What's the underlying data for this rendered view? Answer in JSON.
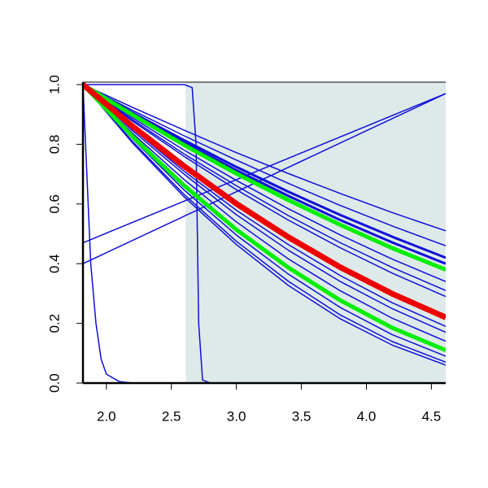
{
  "chart_data": {
    "type": "line",
    "xlim": [
      1.82,
      4.61
    ],
    "ylim": [
      0,
      1
    ],
    "xticks": [
      {
        "value": 2,
        "label": "2.0"
      },
      2.5,
      {
        "value": 3,
        "label": "3.0"
      },
      3.5,
      {
        "value": 4,
        "label": "4.0"
      },
      4.5
    ],
    "yticks": [
      {
        "value": 0,
        "label": "0.0"
      },
      0.2,
      0.4,
      0.6,
      0.8,
      {
        "value": 1,
        "label": "1.0"
      }
    ],
    "highlight": {
      "from": 2.61,
      "color": "#deeaea"
    },
    "x": [
      1.82,
      2.2,
      2.6,
      3.0,
      3.4,
      3.8,
      4.2,
      4.61
    ],
    "series": [
      {
        "color": "#1010d8",
        "linewidth": 1.5,
        "values": [
          1,
          0.924,
          0.847,
          0.772,
          0.702,
          0.635,
          0.571,
          0.51
        ]
      },
      {
        "color": "#1010d8",
        "linewidth": 1.5,
        "values": [
          1,
          0.914,
          0.828,
          0.747,
          0.669,
          0.595,
          0.526,
          0.46
        ]
      },
      {
        "color": "#1010d8",
        "linewidth": 3,
        "values": [
          1,
          0.906,
          0.813,
          0.724,
          0.641,
          0.563,
          0.49,
          0.42
        ]
      },
      {
        "color": "#1010d8",
        "linewidth": 3,
        "values": [
          1,
          0.902,
          0.805,
          0.713,
          0.627,
          0.546,
          0.471,
          0.4
        ]
      },
      {
        "color": "#1010d8",
        "linewidth": 1.5,
        "values": [
          1,
          0.889,
          0.78,
          0.679,
          0.584,
          0.496,
          0.415,
          0.34
        ]
      },
      {
        "color": "#1010d8",
        "linewidth": 1.5,
        "values": [
          1,
          0.883,
          0.767,
          0.661,
          0.561,
          0.47,
          0.387,
          0.31
        ]
      },
      {
        "color": "#1010d8",
        "linewidth": 1.5,
        "values": [
          1,
          0.878,
          0.759,
          0.648,
          0.546,
          0.453,
          0.368,
          0.29
        ]
      },
      {
        "color": "#1010d8",
        "linewidth": 1.5,
        "values": [
          1,
          0.852,
          0.709,
          0.579,
          0.464,
          0.36,
          0.269,
          0.19
        ]
      },
      {
        "color": "#1010d8",
        "linewidth": 1.5,
        "values": [
          1,
          0.846,
          0.699,
          0.564,
          0.445,
          0.34,
          0.249,
          0.17
        ]
      },
      {
        "color": "#1010d8",
        "linewidth": 1.5,
        "values": [
          1,
          0.837,
          0.681,
          0.54,
          0.416,
          0.309,
          0.217,
          0.14
        ]
      },
      {
        "color": "#1010d8",
        "linewidth": 1.5,
        "values": [
          1,
          0.819,
          0.646,
          0.496,
          0.365,
          0.253,
          0.162,
          0.09
        ]
      },
      {
        "color": "#1010d8",
        "linewidth": 1.5,
        "values": [
          1,
          0.81,
          0.631,
          0.475,
          0.341,
          0.228,
          0.139,
          0.07
        ]
      },
      {
        "color": "#1010d8",
        "linewidth": 1.5,
        "values": [
          1,
          0.805,
          0.623,
          0.464,
          0.327,
          0.215,
          0.127,
          0.06
        ]
      },
      {
        "color": "#1010d8",
        "linewidth": 1.5,
        "x": [
          1.82,
          1.85,
          1.88,
          1.92,
          1.96,
          2.0,
          2.1,
          2.2,
          4.61
        ],
        "values": [
          1,
          0.7,
          0.4,
          0.2,
          0.08,
          0.03,
          0.005,
          0,
          0
        ]
      },
      {
        "color": "#1010d8",
        "linewidth": 1.5,
        "x": [
          1.82,
          2.6,
          2.66,
          2.69,
          2.71,
          2.74,
          2.8,
          4.61
        ],
        "values": [
          1,
          1,
          0.99,
          0.8,
          0.2,
          0.01,
          0,
          0
        ]
      },
      {
        "color": "#1010d8",
        "linewidth": 1.5,
        "x": [
          1.82,
          4.61
        ],
        "values": [
          0.47,
          0.97
        ]
      },
      {
        "color": "#1010d8",
        "linewidth": 1.5,
        "x": [
          1.82,
          4.61
        ],
        "values": [
          0.4,
          0.97
        ]
      },
      {
        "color": "#00ee00",
        "linewidth": 5,
        "values": [
          1,
          0.899,
          0.797,
          0.702,
          0.613,
          0.53,
          0.452,
          0.38
        ]
      },
      {
        "color": "#00ee00",
        "linewidth": 5,
        "values": [
          1,
          0.826,
          0.661,
          0.514,
          0.387,
          0.277,
          0.185,
          0.11
        ]
      },
      {
        "color": "#ee0000",
        "linewidth": 7,
        "values": [
          1,
          0.861,
          0.726,
          0.601,
          0.489,
          0.388,
          0.299,
          0.22
        ]
      }
    ]
  }
}
